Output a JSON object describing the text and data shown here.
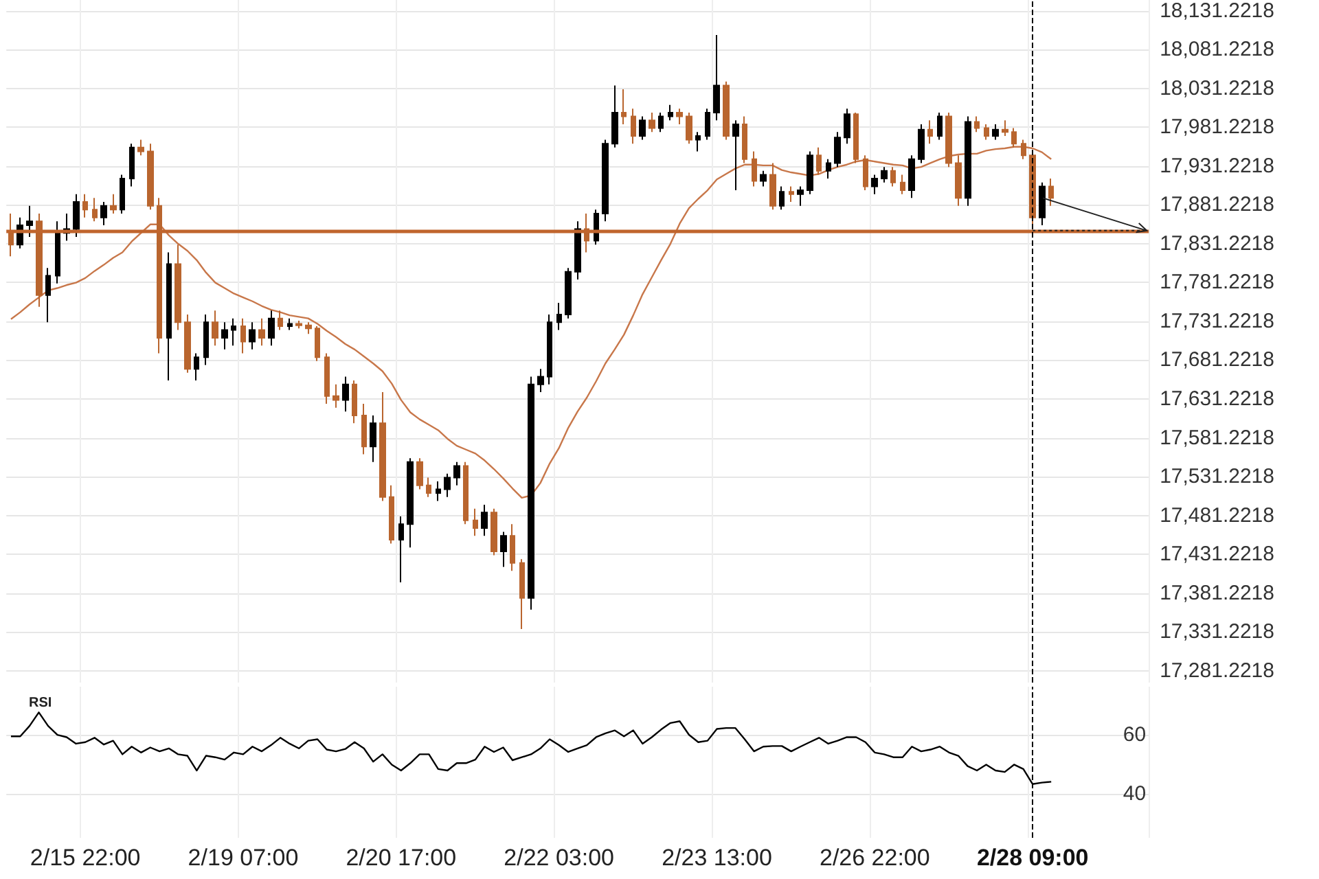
{
  "chart_data": [
    {
      "type": "candlestick",
      "categories": [
        null,
        null,
        null,
        null,
        null,
        null,
        null,
        null,
        "2/15 22:00",
        null,
        null,
        null,
        null,
        null,
        null,
        null,
        null,
        null,
        null,
        null,
        null,
        null,
        null,
        null,
        null,
        "2/19 07:00",
        null,
        null,
        null,
        null,
        null,
        null,
        null,
        null,
        null,
        null,
        null,
        null,
        null,
        null,
        null,
        null,
        "2/20 17:00",
        null,
        null,
        null,
        null,
        null,
        null,
        null,
        null,
        null,
        null,
        null,
        null,
        null,
        null,
        null,
        null,
        "2/22 03:00",
        null,
        null,
        null,
        null,
        null,
        null,
        null,
        null,
        null,
        null,
        null,
        null,
        null,
        null,
        null,
        null,
        "2/23 13:00",
        null,
        null,
        null,
        null,
        null,
        null,
        null,
        null,
        null,
        null,
        null,
        null,
        null,
        null,
        null,
        null,
        "2/26 22:00",
        null,
        null,
        null,
        null,
        null,
        null,
        null,
        null,
        null,
        null,
        null,
        null,
        null,
        null,
        null,
        null,
        "2/28 09:00",
        null,
        null,
        null,
        null,
        null,
        null,
        null,
        null,
        null,
        null,
        null,
        null
      ],
      "ohlc": [
        [
          17845,
          17870,
          17815,
          17830
        ],
        [
          17830,
          17865,
          17825,
          17855
        ],
        [
          17855,
          17880,
          17840,
          17860
        ],
        [
          17860,
          17870,
          17750,
          17765
        ],
        [
          17765,
          17800,
          17730,
          17790
        ],
        [
          17790,
          17860,
          17780,
          17845
        ],
        [
          17845,
          17870,
          17835,
          17850
        ],
        [
          17850,
          17895,
          17840,
          17885
        ],
        [
          17885,
          17895,
          17865,
          17875
        ],
        [
          17875,
          17890,
          17860,
          17865
        ],
        [
          17865,
          17885,
          17855,
          17880
        ],
        [
          17880,
          17895,
          17870,
          17875
        ],
        [
          17875,
          17920,
          17870,
          17915
        ],
        [
          17915,
          17960,
          17905,
          17955
        ],
        [
          17955,
          17965,
          17945,
          17950
        ],
        [
          17950,
          17960,
          17875,
          17880
        ],
        [
          17880,
          17890,
          17690,
          17710
        ],
        [
          17710,
          17820,
          17655,
          17805
        ],
        [
          17805,
          17830,
          17720,
          17730
        ],
        [
          17730,
          17740,
          17665,
          17670
        ],
        [
          17670,
          17690,
          17655,
          17685
        ],
        [
          17685,
          17740,
          17675,
          17730
        ],
        [
          17730,
          17745,
          17700,
          17710
        ],
        [
          17710,
          17730,
          17695,
          17720
        ],
        [
          17720,
          17735,
          17700,
          17725
        ],
        [
          17725,
          17735,
          17690,
          17705
        ],
        [
          17705,
          17730,
          17695,
          17720
        ],
        [
          17720,
          17735,
          17700,
          17710
        ],
        [
          17710,
          17745,
          17700,
          17735
        ],
        [
          17735,
          17745,
          17720,
          17725
        ],
        [
          17725,
          17735,
          17720,
          17728
        ],
        [
          17728,
          17732,
          17722,
          17726
        ],
        [
          17726,
          17730,
          17715,
          17722
        ],
        [
          17722,
          17725,
          17680,
          17685
        ],
        [
          17685,
          17690,
          17625,
          17635
        ],
        [
          17635,
          17650,
          17620,
          17630
        ],
        [
          17630,
          17660,
          17615,
          17650
        ],
        [
          17650,
          17655,
          17600,
          17610
        ],
        [
          17610,
          17625,
          17560,
          17570
        ],
        [
          17570,
          17610,
          17550,
          17600
        ],
        [
          17600,
          17640,
          17500,
          17505
        ],
        [
          17505,
          17520,
          17445,
          17450
        ],
        [
          17450,
          17480,
          17395,
          17470
        ],
        [
          17470,
          17555,
          17440,
          17550
        ],
        [
          17550,
          17555,
          17515,
          17520
        ],
        [
          17520,
          17530,
          17505,
          17510
        ],
        [
          17510,
          17525,
          17500,
          17515
        ],
        [
          17515,
          17535,
          17505,
          17530
        ],
        [
          17530,
          17550,
          17520,
          17545
        ],
        [
          17545,
          17550,
          17470,
          17475
        ],
        [
          17475,
          17490,
          17455,
          17465
        ],
        [
          17465,
          17495,
          17455,
          17485
        ],
        [
          17485,
          17490,
          17430,
          17435
        ],
        [
          17435,
          17460,
          17415,
          17455
        ],
        [
          17455,
          17470,
          17410,
          17420
        ],
        [
          17420,
          17425,
          17335,
          17375
        ],
        [
          17375,
          17660,
          17360,
          17650
        ],
        [
          17650,
          17670,
          17640,
          17660
        ],
        [
          17660,
          17740,
          17650,
          17730
        ],
        [
          17730,
          17755,
          17720,
          17740
        ],
        [
          17740,
          17800,
          17735,
          17795
        ],
        [
          17795,
          17860,
          17785,
          17850
        ],
        [
          17850,
          17870,
          17820,
          17835
        ],
        [
          17835,
          17875,
          17830,
          17870
        ],
        [
          17870,
          17965,
          17860,
          17960
        ],
        [
          17960,
          18035,
          17955,
          18000
        ],
        [
          18000,
          18030,
          17985,
          17995
        ],
        [
          17995,
          18005,
          17960,
          17970
        ],
        [
          17970,
          17995,
          17965,
          17990
        ],
        [
          17990,
          18000,
          17975,
          17980
        ],
        [
          17980,
          18000,
          17975,
          17995
        ],
        [
          17995,
          18010,
          17990,
          18000
        ],
        [
          18000,
          18005,
          17985,
          17995
        ],
        [
          17995,
          18000,
          17960,
          17965
        ],
        [
          17965,
          17975,
          17950,
          17970
        ],
        [
          17970,
          18005,
          17965,
          18000
        ],
        [
          18000,
          18100,
          17990,
          18035
        ],
        [
          18035,
          18040,
          17965,
          17970
        ],
        [
          17970,
          17990,
          17900,
          17985
        ],
        [
          17985,
          17995,
          17935,
          17940
        ],
        [
          17940,
          17950,
          17905,
          17912
        ],
        [
          17912,
          17925,
          17905,
          17920
        ],
        [
          17920,
          17935,
          17875,
          17880
        ],
        [
          17880,
          17905,
          17875,
          17898
        ],
        [
          17898,
          17905,
          17885,
          17895
        ],
        [
          17895,
          17905,
          17880,
          17900
        ],
        [
          17900,
          17950,
          17895,
          17945
        ],
        [
          17945,
          17955,
          17920,
          17925
        ],
        [
          17925,
          17940,
          17915,
          17935
        ],
        [
          17935,
          17975,
          17930,
          17968
        ],
        [
          17968,
          18005,
          17960,
          17998
        ],
        [
          17998,
          18000,
          17935,
          17940
        ],
        [
          17940,
          17945,
          17900,
          17905
        ],
        [
          17905,
          17920,
          17895,
          17915
        ],
        [
          17915,
          17930,
          17910,
          17925
        ],
        [
          17925,
          17930,
          17905,
          17910
        ],
        [
          17910,
          17920,
          17895,
          17900
        ],
        [
          17900,
          17945,
          17890,
          17940
        ],
        [
          17940,
          17985,
          17935,
          17978
        ],
        [
          17978,
          17990,
          17960,
          17970
        ],
        [
          17970,
          18000,
          17965,
          17995
        ],
        [
          17995,
          18000,
          17930,
          17935
        ],
        [
          17935,
          17945,
          17880,
          17890
        ],
        [
          17890,
          17995,
          17880,
          17988
        ],
        [
          17988,
          17995,
          17975,
          17980
        ],
        [
          17980,
          17985,
          17965,
          17970
        ],
        [
          17970,
          17985,
          17965,
          17978
        ],
        [
          17978,
          17990,
          17970,
          17975
        ],
        [
          17975,
          17980,
          17955,
          17960
        ],
        [
          17960,
          17965,
          17940,
          17945
        ],
        [
          17945,
          17950,
          17855,
          17865
        ],
        [
          17865,
          17910,
          17855,
          17905
        ],
        [
          17905,
          17915,
          17880,
          17890
        ],
        null,
        null,
        null,
        null,
        null,
        null,
        null,
        null,
        null,
        null
      ],
      "colors": [
        "#b9652e",
        "#000000",
        "#000000",
        "#b9652e",
        "#000000",
        "#000000",
        "#000000",
        "#000000",
        "#b9652e",
        "#b9652e",
        "#000000",
        "#b9652e",
        "#000000",
        "#000000",
        "#b9652e",
        "#b9652e",
        "#b9652e",
        "#000000",
        "#b9652e",
        "#b9652e",
        "#000000",
        "#000000",
        "#b9652e",
        "#000000",
        "#000000",
        "#b9652e",
        "#000000",
        "#b9652e",
        "#000000",
        "#b9652e",
        "#000000",
        "#b9652e",
        "#b9652e",
        "#b9652e",
        "#b9652e",
        "#b9652e",
        "#000000",
        "#b9652e",
        "#b9652e",
        "#000000",
        "#b9652e",
        "#b9652e",
        "#000000",
        "#000000",
        "#b9652e",
        "#b9652e",
        "#000000",
        "#000000",
        "#000000",
        "#b9652e",
        "#b9652e",
        "#000000",
        "#b9652e",
        "#000000",
        "#b9652e",
        "#b9652e",
        "#000000",
        "#000000",
        "#000000",
        "#000000",
        "#000000",
        "#000000",
        "#b9652e",
        "#000000",
        "#000000",
        "#000000",
        "#b9652e",
        "#b9652e",
        "#000000",
        "#b9652e",
        "#000000",
        "#000000",
        "#b9652e",
        "#b9652e",
        "#000000",
        "#000000",
        "#000000",
        "#b9652e",
        "#000000",
        "#b9652e",
        "#b9652e",
        "#000000",
        "#b9652e",
        "#000000",
        "#b9652e",
        "#000000",
        "#000000",
        "#b9652e",
        "#000000",
        "#000000",
        "#000000",
        "#b9652e",
        "#b9652e",
        "#000000",
        "#000000",
        "#b9652e",
        "#b9652e",
        "#000000",
        "#000000",
        "#b9652e",
        "#000000",
        "#b9652e",
        "#b9652e",
        "#000000",
        "#b9652e",
        "#b9652e",
        "#000000",
        "#b9652e",
        "#b9652e",
        "#b9652e",
        "#b9652e",
        "#000000",
        "#b9652e",
        null,
        null,
        null,
        null,
        null,
        null,
        null,
        null,
        null,
        null
      ],
      "series": [
        {
          "type": "line",
          "color": "#c8774a",
          "values": [
            17734,
            17743,
            17753,
            17762,
            17771,
            17774,
            17778,
            17781,
            17787,
            17796,
            17804,
            17813,
            17820,
            17834,
            17845,
            17856,
            17856,
            17842,
            17831,
            17822,
            17810,
            17794,
            17781,
            17774,
            17767,
            17762,
            17757,
            17751,
            17746,
            17743,
            17739,
            17737,
            17735,
            17728,
            17719,
            17711,
            17702,
            17695,
            17686,
            17677,
            17667,
            17651,
            17630,
            17614,
            17605,
            17598,
            17591,
            17580,
            17571,
            17566,
            17561,
            17552,
            17541,
            17529,
            17516,
            17504,
            17507,
            17523,
            17548,
            17568,
            17594,
            17615,
            17633,
            17654,
            17677,
            17695,
            17714,
            17739,
            17766,
            17788,
            17810,
            17831,
            17857,
            17877,
            17889,
            17900,
            17914,
            17921,
            17928,
            17933,
            17933,
            17932,
            17932,
            17926,
            17923,
            17921,
            17919,
            17921,
            17926,
            17930,
            17933,
            17937,
            17939,
            17937,
            17935,
            17933,
            17932,
            17928,
            17930,
            17935,
            17940,
            17944,
            17946,
            17947,
            17947,
            17951,
            17953,
            17954,
            17956,
            17956,
            17954,
            17949,
            17940,
            null,
            null,
            null,
            null,
            null,
            null,
            null,
            null,
            null,
            null
          ]
        }
      ],
      "ylim": [
        17266,
        18145
      ],
      "yticks": [
        {
          "value": 17281.2218,
          "label": "17,281.2218"
        },
        {
          "value": 17331.2218,
          "label": "17,331.2218"
        },
        {
          "value": 17381.2218,
          "label": "17,381.2218"
        },
        {
          "value": 17431.2218,
          "label": "17,431.2218"
        },
        {
          "value": 17481.2218,
          "label": "17,481.2218"
        },
        {
          "value": 17531.2218,
          "label": "17,531.2218"
        },
        {
          "value": 17581.2218,
          "label": "17,581.2218"
        },
        {
          "value": 17631.2218,
          "label": "17,631.2218"
        },
        {
          "value": 17681.2218,
          "label": "17,681.2218"
        },
        {
          "value": 17731.2218,
          "label": "17,731.2218"
        },
        {
          "value": 17781.2218,
          "label": "17,781.2218"
        },
        {
          "value": 17831.2218,
          "label": "17,831.2218"
        },
        {
          "value": 17881.2218,
          "label": "17,881.2218"
        },
        {
          "value": 17931.2218,
          "label": "17,931.2218"
        },
        {
          "value": 17981.2218,
          "label": "17,981.2218"
        },
        {
          "value": 18031.2218,
          "label": "18,031.2218"
        },
        {
          "value": 18081.2218,
          "label": "18,081.2218"
        },
        {
          "value": 18131.2218,
          "label": "18,131.2218"
        }
      ],
      "grid": true,
      "tick_labels": "y",
      "marker": "none",
      "line_style": "solid",
      "ref_lines": [
        {
          "axis": "y",
          "value": 17848,
          "color": "#c0652d",
          "line_style": "solid"
        },
        {
          "axis": "x",
          "value": "2/28 09:00",
          "color": "#000000",
          "line_style": "dashed"
        }
      ]
    },
    {
      "type": "line",
      "title": "RSI",
      "categories": [
        null,
        null,
        null,
        null,
        null,
        null,
        null,
        null,
        "2/15 22:00",
        null,
        null,
        null,
        null,
        null,
        null,
        null,
        null,
        null,
        null,
        null,
        null,
        null,
        null,
        null,
        null,
        "2/19 07:00",
        null,
        null,
        null,
        null,
        null,
        null,
        null,
        null,
        null,
        null,
        null,
        null,
        null,
        null,
        null,
        null,
        "2/20 17:00",
        null,
        null,
        null,
        null,
        null,
        null,
        null,
        null,
        null,
        null,
        null,
        null,
        null,
        null,
        null,
        null,
        "2/22 03:00",
        null,
        null,
        null,
        null,
        null,
        null,
        null,
        null,
        null,
        null,
        null,
        null,
        null,
        null,
        null,
        null,
        "2/23 13:00",
        null,
        null,
        null,
        null,
        null,
        null,
        null,
        null,
        null,
        null,
        null,
        null,
        null,
        null,
        null,
        null,
        "2/26 22:00",
        null,
        null,
        null,
        null,
        null,
        null,
        null,
        null,
        null,
        null,
        null,
        null,
        null,
        null,
        null,
        null,
        "2/28 09:00",
        null,
        null,
        null,
        null,
        null,
        null,
        null,
        null,
        null,
        null,
        null,
        null
      ],
      "series": [
        {
          "color": "#000000",
          "values": [
            59.5,
            59.5,
            63,
            67.6,
            63,
            60,
            59.2,
            57,
            57.5,
            59,
            56.7,
            58,
            53.4,
            56,
            54,
            55.7,
            54.4,
            55.4,
            53.4,
            52.9,
            47.9,
            52.9,
            52.4,
            51.6,
            54,
            53.4,
            56,
            54.4,
            56.5,
            59,
            57,
            55.4,
            58,
            58.5,
            55,
            54.4,
            55.2,
            57.5,
            55.4,
            50.9,
            53.4,
            49.9,
            47.9,
            50.4,
            53.4,
            53.4,
            48.4,
            47.9,
            50.4,
            50.4,
            51.6,
            56,
            54.2,
            55.7,
            51.4,
            52.4,
            53.4,
            55.4,
            58.5,
            56.5,
            54.2,
            55.4,
            56.5,
            59.2,
            60.5,
            61.5,
            59.5,
            61.5,
            57,
            59.2,
            61.8,
            64,
            64.6,
            60,
            57.5,
            58,
            62,
            62.3,
            62.3,
            58.5,
            54.4,
            56,
            56.2,
            56.2,
            54.4,
            56,
            57.5,
            59,
            57,
            58,
            59.2,
            59.2,
            57.5,
            54,
            53.4,
            52.4,
            52.4,
            56,
            54.4,
            55,
            56,
            54,
            52.9,
            49.4,
            47.9,
            49.9,
            47.9,
            47.4,
            49.9,
            48.4,
            43.3,
            43.8,
            44.1,
            null,
            null,
            null,
            null,
            null,
            null,
            null,
            null,
            null,
            null
          ]
        }
      ],
      "ylim": [
        25.1,
        76.3
      ],
      "yticks": [
        40,
        60
      ],
      "grid": true,
      "marker": "none",
      "line_style": "solid",
      "ref_lines": [
        {
          "axis": "x",
          "value": "2/28 09:00",
          "color": "#000000",
          "line_style": "dashed"
        }
      ]
    }
  ]
}
